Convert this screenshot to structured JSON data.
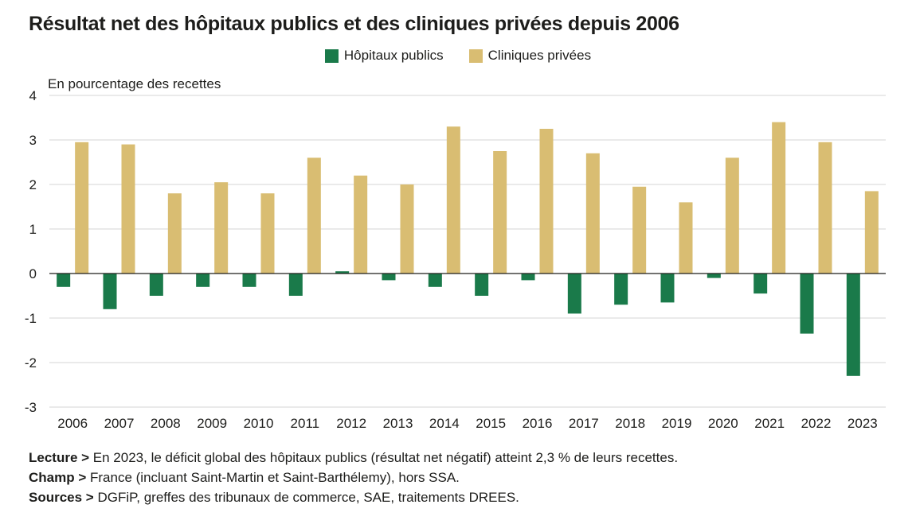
{
  "title": "Résultat net des hôpitaux publics et des cliniques privées depuis 2006",
  "chart_data": {
    "type": "bar",
    "title": "Résultat net des hôpitaux publics et des cliniques privées depuis 2006",
    "ylabel": "En pourcentage des recettes",
    "xlabel": "",
    "categories": [
      "2006",
      "2007",
      "2008",
      "2009",
      "2010",
      "2011",
      "2012",
      "2013",
      "2014",
      "2015",
      "2016",
      "2017",
      "2018",
      "2019",
      "2020",
      "2021",
      "2022",
      "2023"
    ],
    "series": [
      {
        "name": "Hôpitaux publics",
        "color": "#1a7a4a",
        "values": [
          -0.3,
          -0.8,
          -0.5,
          -0.3,
          -0.3,
          -0.5,
          0.05,
          -0.15,
          -0.3,
          -0.5,
          -0.15,
          -0.9,
          -0.7,
          -0.65,
          -0.1,
          -0.45,
          -1.35,
          -2.3
        ]
      },
      {
        "name": "Cliniques privées",
        "color": "#d9bd72",
        "values": [
          2.95,
          2.9,
          1.8,
          2.05,
          1.8,
          2.6,
          2.2,
          2.0,
          3.3,
          2.75,
          3.25,
          2.7,
          1.95,
          1.6,
          2.6,
          3.4,
          2.95,
          1.85
        ]
      }
    ],
    "ylim": [
      -3,
      4
    ],
    "yticks": [
      "4",
      "3",
      "2",
      "1",
      "0",
      "-1",
      "-2",
      "-3"
    ],
    "ytick_values": [
      4,
      3,
      2,
      1,
      0,
      -1,
      -2,
      -3
    ],
    "grid": true,
    "legend_position": "top-center"
  },
  "notes": [
    {
      "key": "Lecture >",
      "text": " En 2023, le déficit global des hôpitaux publics (résultat net négatif) atteint 2,3 % de leurs recettes."
    },
    {
      "key": "Champ >",
      "text": " France (incluant Saint-Martin et Saint-Barthélemy), hors SSA."
    },
    {
      "key": "Sources >",
      "text": " DGFiP, greffes des tribunaux de commerce, SAE, traitements DREES."
    }
  ]
}
